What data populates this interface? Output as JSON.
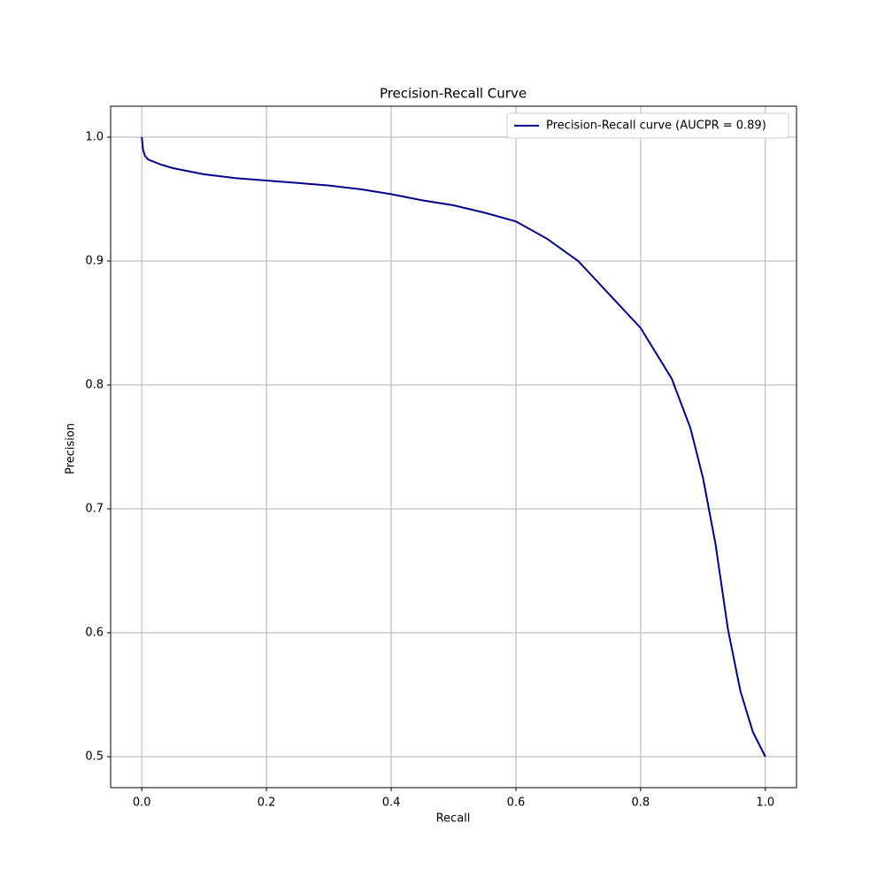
{
  "chart_data": {
    "type": "line",
    "title": "Precision-Recall Curve",
    "x_label": "Recall",
    "y_label": "Precision",
    "x": [
      0,
      0.002,
      0.005,
      0.01,
      0.02,
      0.03,
      0.05,
      0.1,
      0.15,
      0.2,
      0.25,
      0.3,
      0.35,
      0.4,
      0.45,
      0.5,
      0.55,
      0.6,
      0.65,
      0.7,
      0.75,
      0.8,
      0.85,
      0.88,
      0.9,
      0.92,
      0.94,
      0.96,
      0.98,
      1.0
    ],
    "series": [
      {
        "name": "Precision-Recall curve (AUCPR = 0.89)",
        "color": "#00008b",
        "values": [
          1.0,
          0.99,
          0.985,
          0.982,
          0.98,
          0.978,
          0.975,
          0.97,
          0.967,
          0.965,
          0.963,
          0.961,
          0.958,
          0.954,
          0.949,
          0.945,
          0.939,
          0.932,
          0.918,
          0.9,
          0.873,
          0.846,
          0.805,
          0.765,
          0.725,
          0.672,
          0.603,
          0.553,
          0.52,
          0.5
        ]
      }
    ],
    "xlim": [
      -0.05,
      1.05
    ],
    "ylim": [
      0.475,
      1.025
    ],
    "xticks": [
      {
        "value": 0,
        "label": "0.0"
      },
      0.2,
      0.4,
      0.6,
      0.8,
      {
        "value": 1,
        "label": "1.0"
      }
    ],
    "yticks": [
      0.5,
      0.6,
      0.7,
      0.8,
      0.9,
      {
        "value": 1,
        "label": "1.0"
      }
    ],
    "grid": true,
    "legend": "upper right"
  }
}
